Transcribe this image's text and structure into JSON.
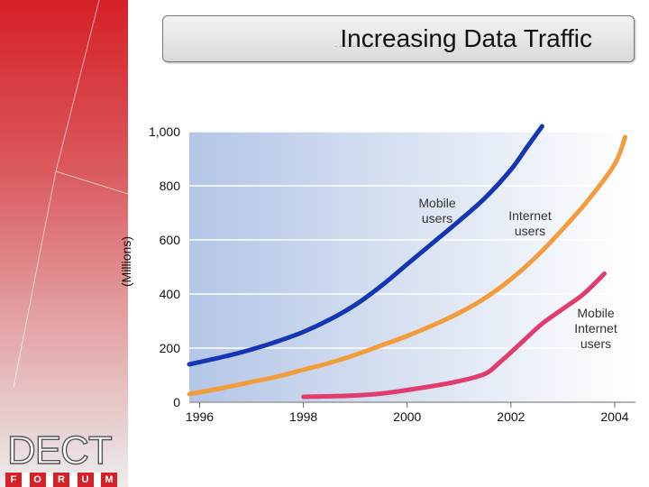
{
  "slide": {
    "title": "Increasing Data Traffic",
    "logo_word": "DECT",
    "logo_letters": [
      "F",
      "O",
      "R",
      "U",
      "M"
    ]
  },
  "colors": {
    "sidebar_red": "#d62027",
    "plot_bg_left": "#b3c6e6",
    "plot_bg_right": "#ffffff",
    "mobile_users": "#1436b4",
    "internet_users": "#f39c3c",
    "mobile_internet_users": "#e03c6e"
  },
  "chart_data": {
    "type": "line",
    "title": "Increasing Data Traffic",
    "xlabel": "",
    "ylabel": "(Millions)",
    "xlim": [
      1995.8,
      2004.4
    ],
    "ylim": [
      0,
      1000
    ],
    "y_ticks": [
      "0",
      "200",
      "400",
      "600",
      "800",
      "1,000"
    ],
    "x_ticks": [
      "1996",
      "1998",
      "2000",
      "2002",
      "2004"
    ],
    "grid": "horizontal",
    "series": [
      {
        "name": "Mobile users",
        "color": "#1436b4",
        "x": [
          1995.8,
          1996.5,
          1997.0,
          1997.5,
          1998.0,
          1998.5,
          1999.0,
          1999.5,
          2000.0,
          2000.5,
          2001.0,
          2001.5,
          2002.0,
          2002.3,
          2002.6
        ],
        "y": [
          140,
          170,
          195,
          225,
          260,
          305,
          360,
          430,
          510,
          590,
          670,
          755,
          860,
          940,
          1020
        ]
      },
      {
        "name": "Internet users",
        "color": "#f39c3c",
        "x": [
          1995.8,
          1996.5,
          1997.0,
          1997.5,
          1998.0,
          1998.5,
          1999.0,
          1999.5,
          2000.0,
          2000.5,
          2001.0,
          2001.5,
          2002.0,
          2002.5,
          2003.0,
          2003.5,
          2004.0,
          2004.2
        ],
        "y": [
          30,
          55,
          75,
          95,
          120,
          145,
          175,
          210,
          245,
          285,
          330,
          385,
          455,
          540,
          640,
          750,
          880,
          980
        ]
      },
      {
        "name": "Mobile Internet users",
        "color": "#e03c6e",
        "x": [
          1998.0,
          1998.5,
          1999.0,
          1999.5,
          2000.0,
          2000.5,
          2001.0,
          2001.5,
          2001.8,
          2002.2,
          2002.6,
          2003.0,
          2003.4,
          2003.8
        ],
        "y": [
          20,
          22,
          25,
          32,
          45,
          60,
          78,
          105,
          150,
          220,
          290,
          345,
          400,
          475
        ]
      }
    ],
    "annotations": [
      {
        "series": "Mobile users",
        "lines": [
          "Mobile",
          "users"
        ]
      },
      {
        "series": "Internet users",
        "lines": [
          "Internet",
          "users"
        ]
      },
      {
        "series": "Mobile Internet users",
        "lines": [
          "Mobile",
          "Internet",
          "users"
        ]
      }
    ]
  }
}
